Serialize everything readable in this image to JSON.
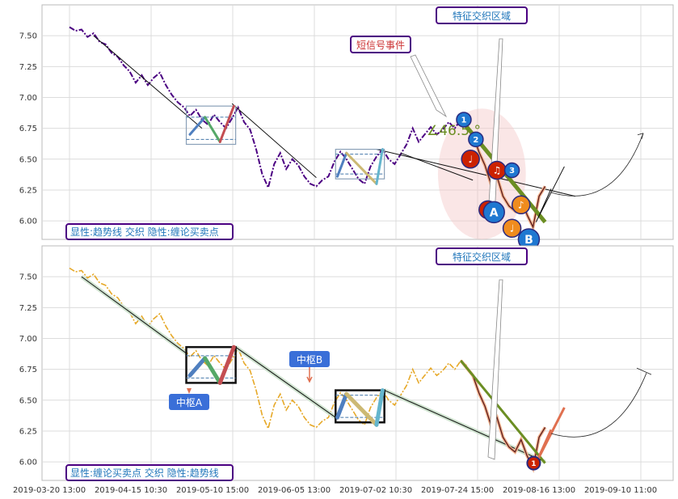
{
  "chart_data": [
    {
      "type": "line",
      "panel": "top",
      "ylim": [
        5.85,
        7.75
      ],
      "y_ticks": [
        "7.50",
        "7.25",
        "7.00",
        "6.75",
        "6.50",
        "6.25",
        "6.00"
      ],
      "y_tick_values": [
        7.5,
        7.25,
        7.0,
        6.75,
        6.5,
        6.25,
        6.0
      ],
      "legend": "显性:趋势线 交织 隐性:缠论买卖点",
      "annotations": {
        "feature_zone": "特征交织区域",
        "short_signal": "短信号事件",
        "angle": "∠46.5 °"
      },
      "price_color": "#4b0082",
      "price_style": "dash-dot",
      "price": [
        [
          0,
          7.57
        ],
        [
          1,
          7.54
        ],
        [
          2,
          7.55
        ],
        [
          3,
          7.49
        ],
        [
          4,
          7.52
        ],
        [
          5,
          7.45
        ],
        [
          6,
          7.43
        ],
        [
          7,
          7.36
        ],
        [
          8,
          7.33
        ],
        [
          9,
          7.26
        ],
        [
          10,
          7.21
        ],
        [
          11,
          7.12
        ],
        [
          12,
          7.18
        ],
        [
          13,
          7.1
        ],
        [
          14,
          7.16
        ],
        [
          15,
          7.2
        ],
        [
          16,
          7.1
        ],
        [
          17,
          7.02
        ],
        [
          18,
          6.96
        ],
        [
          19,
          6.92
        ],
        [
          20,
          6.85
        ],
        [
          21,
          6.9
        ],
        [
          22,
          6.82
        ],
        [
          23,
          6.78
        ],
        [
          24,
          6.86
        ],
        [
          25,
          6.8
        ],
        [
          26,
          6.75
        ],
        [
          27,
          6.83
        ],
        [
          28,
          6.92
        ],
        [
          29,
          6.8
        ],
        [
          30,
          6.74
        ],
        [
          31,
          6.58
        ],
        [
          32,
          6.38
        ],
        [
          33,
          6.27
        ],
        [
          34,
          6.46
        ],
        [
          35,
          6.55
        ],
        [
          36,
          6.42
        ],
        [
          37,
          6.5
        ],
        [
          38,
          6.45
        ],
        [
          39,
          6.36
        ],
        [
          40,
          6.3
        ],
        [
          41,
          6.28
        ],
        [
          42,
          6.33
        ],
        [
          43,
          6.36
        ],
        [
          44,
          6.48
        ],
        [
          45,
          6.56
        ],
        [
          46,
          6.5
        ],
        [
          47,
          6.42
        ],
        [
          48,
          6.34
        ],
        [
          49,
          6.3
        ],
        [
          50,
          6.44
        ],
        [
          51,
          6.52
        ],
        [
          52,
          6.58
        ],
        [
          53,
          6.5
        ],
        [
          54,
          6.46
        ],
        [
          55,
          6.54
        ],
        [
          56,
          6.62
        ],
        [
          57,
          6.75
        ],
        [
          58,
          6.64
        ],
        [
          59,
          6.7
        ],
        [
          60,
          6.76
        ],
        [
          61,
          6.7
        ],
        [
          62,
          6.74
        ],
        [
          63,
          6.8
        ],
        [
          64,
          6.75
        ],
        [
          65,
          6.82
        ],
        [
          66,
          6.78
        ]
      ],
      "trend_lines": [
        [
          [
            4,
            7.5
          ],
          [
            22,
            6.75
          ]
        ],
        [
          [
            27,
            6.95
          ],
          [
            41,
            6.35
          ]
        ],
        [
          [
            55,
            6.55
          ],
          [
            67,
            6.33
          ]
        ],
        [
          [
            51,
            6.58
          ],
          [
            84,
            6.2
          ]
        ]
      ],
      "zhongshu": [
        {
          "x1": 19.4,
          "x2": 27.6,
          "y_top": 6.93,
          "y_bottom": 6.62,
          "inner_top": 6.84,
          "inner_bottom": 6.66,
          "strokes": [
            [
              [
                20,
                6.7
              ],
              [
                22.5,
                6.84
              ],
              [
                25,
                6.64
              ],
              [
                27.3,
                6.93
              ]
            ]
          ],
          "colors": [
            "#4f7fbf",
            "#55a868",
            "#c44e52"
          ]
        },
        {
          "x1": 44.2,
          "x2": 52.3,
          "y_top": 6.58,
          "y_bottom": 6.34,
          "inner_top": 6.54,
          "inner_bottom": 6.38,
          "strokes": [
            [
              [
                44.5,
                6.36
              ],
              [
                46,
                6.55
              ],
              [
                51,
                6.3
              ],
              [
                52,
                6.58
              ]
            ]
          ],
          "colors": [
            "#4f7fbf",
            "#ccb974",
            "#64b5cd"
          ]
        }
      ],
      "ellipse": {
        "cx": 68.5,
        "cy": 6.38,
        "rx": 7.3,
        "ry": 0.53
      },
      "down_leg": [
        [
          65,
          6.82
        ],
        [
          67,
          6.7
        ],
        [
          68,
          6.56
        ],
        [
          69,
          6.45
        ],
        [
          70,
          6.3
        ],
        [
          71,
          6.36
        ],
        [
          72,
          6.2
        ],
        [
          73,
          6.12
        ],
        [
          74,
          6.08
        ],
        [
          75,
          6.18
        ],
        [
          76,
          6.05
        ],
        [
          77,
          5.95
        ],
        [
          78,
          6.2
        ],
        [
          79,
          6.28
        ]
      ],
      "green_line": [
        [
          65,
          6.82
        ],
        [
          79,
          5.99
        ]
      ],
      "markers": [
        {
          "x": 65.5,
          "y": 6.82,
          "label": "1",
          "color": "#1f78d1",
          "r": 9
        },
        {
          "x": 67.5,
          "y": 6.66,
          "label": "2",
          "color": "#1f78d1",
          "r": 9
        },
        {
          "x": 66.6,
          "y": 6.5,
          "label": "♩",
          "color": "#cc2200",
          "r": 11
        },
        {
          "x": 69.5,
          "y": 6.09,
          "label": "♪",
          "color": "#cc2200",
          "r": 11
        },
        {
          "x": 71.0,
          "y": 6.41,
          "label": "♫",
          "color": "#cc2200",
          "r": 11
        },
        {
          "x": 73.5,
          "y": 6.41,
          "label": "3",
          "color": "#1f78d1",
          "r": 9
        },
        {
          "x": 70.5,
          "y": 6.07,
          "label": "A",
          "color": "#1f78d1",
          "r": 13
        },
        {
          "x": 75.0,
          "y": 6.13,
          "label": "♪",
          "color": "#f08c1e",
          "r": 11
        },
        {
          "x": 73.5,
          "y": 5.94,
          "label": "♩",
          "color": "#f08c1e",
          "r": 11
        },
        {
          "x": 76.3,
          "y": 5.85,
          "label": "B",
          "color": "#1f78d1",
          "r": 13
        }
      ]
    },
    {
      "type": "line",
      "panel": "bottom",
      "ylim": [
        5.85,
        7.75
      ],
      "y_ticks": [
        "7.50",
        "7.25",
        "7.00",
        "6.75",
        "6.50",
        "6.25",
        "6.00"
      ],
      "y_tick_values": [
        7.5,
        7.25,
        7.0,
        6.75,
        6.5,
        6.25,
        6.0
      ],
      "x_ticks": [
        "2019-03-20 13:00",
        "2019-04-15 10:30",
        "2019-05-10 15:00",
        "2019-06-05 13:00",
        "2019-07-02 10:30",
        "2019-07-24 15:00",
        "2019-08-16 13:00",
        "2019-09-10 11:00"
      ],
      "legend": "显性:缠论买卖点 交织 隐性:趋势线",
      "annotations": {
        "feature_zone": "特征交织区域",
        "zs_a": "中枢A",
        "zs_b": "中枢B",
        "marker": "1"
      },
      "price_color": "#e6a827",
      "price_style": "dash-dot",
      "price": [
        [
          0,
          7.57
        ],
        [
          1,
          7.54
        ],
        [
          2,
          7.55
        ],
        [
          3,
          7.49
        ],
        [
          4,
          7.52
        ],
        [
          5,
          7.45
        ],
        [
          6,
          7.43
        ],
        [
          7,
          7.36
        ],
        [
          8,
          7.33
        ],
        [
          9,
          7.26
        ],
        [
          10,
          7.21
        ],
        [
          11,
          7.12
        ],
        [
          12,
          7.18
        ],
        [
          13,
          7.1
        ],
        [
          14,
          7.16
        ],
        [
          15,
          7.2
        ],
        [
          16,
          7.1
        ],
        [
          17,
          7.02
        ],
        [
          18,
          6.96
        ],
        [
          19,
          6.92
        ],
        [
          20,
          6.85
        ],
        [
          21,
          6.9
        ],
        [
          22,
          6.82
        ],
        [
          23,
          6.78
        ],
        [
          24,
          6.86
        ],
        [
          25,
          6.8
        ],
        [
          26,
          6.75
        ],
        [
          27,
          6.83
        ],
        [
          28,
          6.92
        ],
        [
          29,
          6.8
        ],
        [
          30,
          6.74
        ],
        [
          31,
          6.58
        ],
        [
          32,
          6.38
        ],
        [
          33,
          6.27
        ],
        [
          34,
          6.46
        ],
        [
          35,
          6.55
        ],
        [
          36,
          6.42
        ],
        [
          37,
          6.5
        ],
        [
          38,
          6.45
        ],
        [
          39,
          6.36
        ],
        [
          40,
          6.3
        ],
        [
          41,
          6.28
        ],
        [
          42,
          6.33
        ],
        [
          43,
          6.36
        ],
        [
          44,
          6.48
        ],
        [
          45,
          6.56
        ],
        [
          46,
          6.5
        ],
        [
          47,
          6.42
        ],
        [
          48,
          6.34
        ],
        [
          49,
          6.3
        ],
        [
          50,
          6.44
        ],
        [
          51,
          6.52
        ],
        [
          52,
          6.58
        ],
        [
          53,
          6.5
        ],
        [
          54,
          6.46
        ],
        [
          55,
          6.54
        ],
        [
          56,
          6.62
        ],
        [
          57,
          6.75
        ],
        [
          58,
          6.64
        ],
        [
          59,
          6.7
        ],
        [
          60,
          6.76
        ],
        [
          61,
          6.7
        ],
        [
          62,
          6.74
        ],
        [
          63,
          6.8
        ],
        [
          64,
          6.75
        ],
        [
          65,
          6.82
        ],
        [
          66,
          6.78
        ]
      ],
      "trend_lines": [
        [
          [
            2,
            7.5
          ],
          [
            19.4,
            6.88
          ]
        ],
        [
          [
            27.6,
            6.93
          ],
          [
            44.2,
            6.36
          ]
        ],
        [
          [
            52.3,
            6.58
          ],
          [
            79,
            6.0
          ]
        ]
      ],
      "zhongshu": [
        {
          "x1": 19.4,
          "x2": 27.6,
          "y_top": 6.93,
          "y_bottom": 6.64,
          "inner_top": 6.86,
          "inner_bottom": 6.68,
          "strokes": [
            [
              [
                20,
                6.7
              ],
              [
                22.5,
                6.84
              ],
              [
                25,
                6.64
              ],
              [
                27.3,
                6.93
              ]
            ]
          ],
          "colors": [
            "#4f7fbf",
            "#55a868",
            "#c44e52"
          ]
        },
        {
          "x1": 44.2,
          "x2": 52.3,
          "y_top": 6.58,
          "y_bottom": 6.32,
          "inner_top": 6.54,
          "inner_bottom": 6.36,
          "strokes": [
            [
              [
                44.5,
                6.36
              ],
              [
                46,
                6.55
              ],
              [
                51,
                6.3
              ],
              [
                52,
                6.58
              ]
            ]
          ],
          "colors": [
            "#4f7fbf",
            "#ccb974",
            "#64b5cd"
          ]
        }
      ],
      "down_leg": [
        [
          65,
          6.82
        ],
        [
          67,
          6.7
        ],
        [
          68,
          6.56
        ],
        [
          69,
          6.45
        ],
        [
          70,
          6.3
        ],
        [
          71,
          6.36
        ],
        [
          72,
          6.2
        ],
        [
          73,
          6.12
        ],
        [
          74,
          6.08
        ],
        [
          75,
          6.18
        ],
        [
          76,
          6.05
        ],
        [
          77,
          5.95
        ],
        [
          78,
          6.2
        ],
        [
          79,
          6.28
        ]
      ],
      "green_line": [
        [
          65,
          6.82
        ],
        [
          79,
          5.99
        ]
      ]
    }
  ]
}
